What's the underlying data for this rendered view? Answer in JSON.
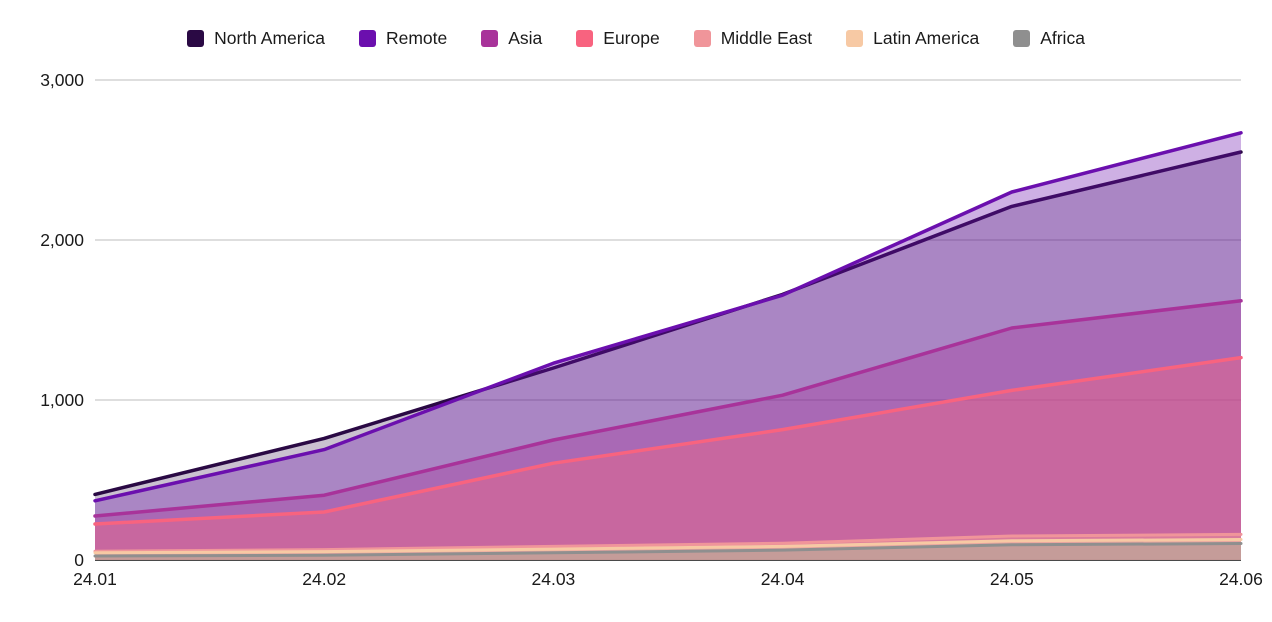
{
  "chart_data": {
    "type": "area",
    "title": "",
    "xlabel": "",
    "ylabel": "",
    "categories": [
      "24.01",
      "24.02",
      "24.03",
      "24.04",
      "24.05",
      "24.06"
    ],
    "y_ticks": [
      {
        "value": 3000,
        "label": "3,000"
      },
      {
        "value": 2000,
        "label": "2,000"
      },
      {
        "value": 1000,
        "label": "1,000"
      },
      {
        "value": 0,
        "label": "0"
      }
    ],
    "ylim": [
      0,
      3000
    ],
    "grid": true,
    "legend_position": "top-center",
    "series": [
      {
        "name": "North America",
        "color": "#2a0944",
        "fill_opacity": 0.25,
        "values": [
          410,
          760,
          1200,
          1660,
          2210,
          2550
        ]
      },
      {
        "name": "Remote",
        "color": "#6b0fae",
        "fill_opacity": 0.33,
        "values": [
          370,
          690,
          1230,
          1655,
          2300,
          2670
        ]
      },
      {
        "name": "Asia",
        "color": "#a8339a",
        "fill_opacity": 0.35,
        "values": [
          275,
          405,
          750,
          1030,
          1450,
          1620
        ]
      },
      {
        "name": "Europe",
        "color": "#f8637f",
        "fill_opacity": 0.4,
        "values": [
          225,
          300,
          605,
          815,
          1060,
          1265
        ]
      },
      {
        "name": "Middle East",
        "color": "#f0959a",
        "fill_opacity": 0.45,
        "values": [
          55,
          65,
          85,
          105,
          150,
          160
        ]
      },
      {
        "name": "Latin America",
        "color": "#f7c9a4",
        "fill_opacity": 0.55,
        "values": [
          45,
          52,
          68,
          85,
          120,
          128
        ]
      },
      {
        "name": "Africa",
        "color": "#8f8f8f",
        "fill_opacity": 0.4,
        "values": [
          25,
          30,
          45,
          62,
          95,
          103
        ]
      }
    ],
    "axis_color": "#4a4a4a",
    "gridline_color": "#c9c9c9"
  }
}
